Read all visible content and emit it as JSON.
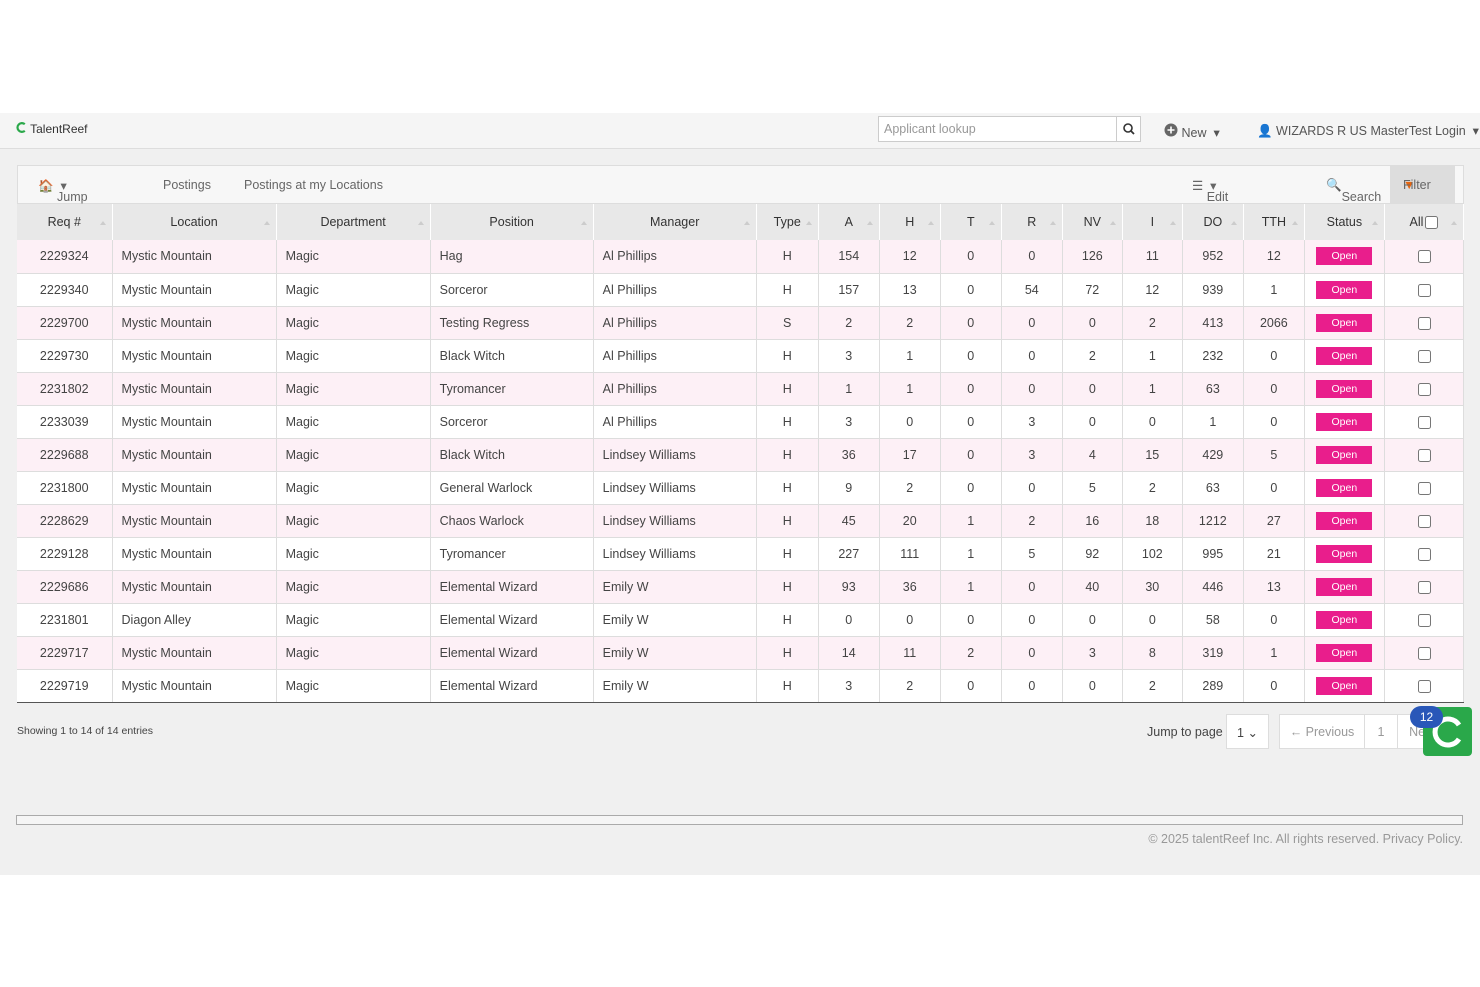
{
  "header": {
    "logo": "TalentReef",
    "search_placeholder": "Applicant lookup",
    "new_button": "New",
    "user": "WIZARDS R US MasterTest Login"
  },
  "breadcrumb": {
    "jump_to": "Jump to",
    "items": [
      "Postings",
      "Postings at my Locations"
    ]
  },
  "actions": {
    "edit": "Edit Postings",
    "search": "Search",
    "filter": "Filter"
  },
  "table": {
    "columns": [
      "Req #",
      "Location",
      "Department",
      "Position",
      "Manager",
      "Type",
      "A",
      "H",
      "T",
      "R",
      "NV",
      "I",
      "DO",
      "TTH",
      "Status",
      "All"
    ],
    "rows": [
      [
        2229324,
        "Mystic Mountain",
        "Magic",
        "Hag",
        "Al Phillips",
        "H",
        154,
        12,
        0,
        0,
        126,
        11,
        952,
        12,
        "Open"
      ],
      [
        2229340,
        "Mystic Mountain",
        "Magic",
        "Sorceror",
        "Al Phillips",
        "H",
        157,
        13,
        0,
        54,
        72,
        12,
        939,
        1,
        "Open"
      ],
      [
        2229700,
        "Mystic Mountain",
        "Magic",
        "Testing Regress",
        "Al Phillips",
        "S",
        2,
        2,
        0,
        0,
        0,
        2,
        413,
        2066,
        "Open"
      ],
      [
        2229730,
        "Mystic Mountain",
        "Magic",
        "Black Witch",
        "Al Phillips",
        "H",
        3,
        1,
        0,
        0,
        2,
        1,
        232,
        0,
        "Open"
      ],
      [
        2231802,
        "Mystic Mountain",
        "Magic",
        "Tyromancer",
        "Al Phillips",
        "H",
        1,
        1,
        0,
        0,
        0,
        1,
        63,
        0,
        "Open"
      ],
      [
        2233039,
        "Mystic Mountain",
        "Magic",
        "Sorceror",
        "Al Phillips",
        "H",
        3,
        0,
        0,
        3,
        0,
        0,
        1,
        0,
        "Open"
      ],
      [
        2229688,
        "Mystic Mountain",
        "Magic",
        "Black Witch",
        "Lindsey Williams",
        "H",
        36,
        17,
        0,
        3,
        4,
        15,
        429,
        5,
        "Open"
      ],
      [
        2231800,
        "Mystic Mountain",
        "Magic",
        "General Warlock",
        "Lindsey Williams",
        "H",
        9,
        2,
        0,
        0,
        5,
        2,
        63,
        0,
        "Open"
      ],
      [
        2228629,
        "Mystic Mountain",
        "Magic",
        "Chaos Warlock",
        "Lindsey Williams",
        "H",
        45,
        20,
        1,
        2,
        16,
        18,
        1212,
        27,
        "Open"
      ],
      [
        2229128,
        "Mystic Mountain",
        "Magic",
        "Tyromancer",
        "Lindsey Williams",
        "H",
        227,
        111,
        1,
        5,
        92,
        102,
        995,
        21,
        "Open"
      ],
      [
        2229686,
        "Mystic Mountain",
        "Magic",
        "Elemental Wizard",
        "Emily W",
        "H",
        93,
        36,
        1,
        0,
        40,
        30,
        446,
        13,
        "Open"
      ],
      [
        2231801,
        "Diagon Alley",
        "Magic",
        "Elemental Wizard",
        "Emily W",
        "H",
        0,
        0,
        0,
        0,
        0,
        0,
        58,
        0,
        "Open"
      ],
      [
        2229717,
        "Mystic Mountain",
        "Magic",
        "Elemental Wizard",
        "Emily W",
        "H",
        14,
        11,
        2,
        0,
        3,
        8,
        319,
        1,
        "Open"
      ],
      [
        2229719,
        "Mystic Mountain",
        "Magic",
        "Elemental Wizard",
        "Emily W",
        "H",
        3,
        2,
        0,
        0,
        0,
        2,
        289,
        0,
        "Open"
      ]
    ]
  },
  "footer": {
    "info": "Showing 1 to 14 of 14 entries",
    "jump_label": "Jump to page",
    "jump_value": "1",
    "previous": "← Previous",
    "page": "1",
    "next": "Next",
    "badge": "12",
    "copyright": "© 2025 talentReef Inc. All rights reserved.",
    "privacy": "Privacy Policy."
  }
}
